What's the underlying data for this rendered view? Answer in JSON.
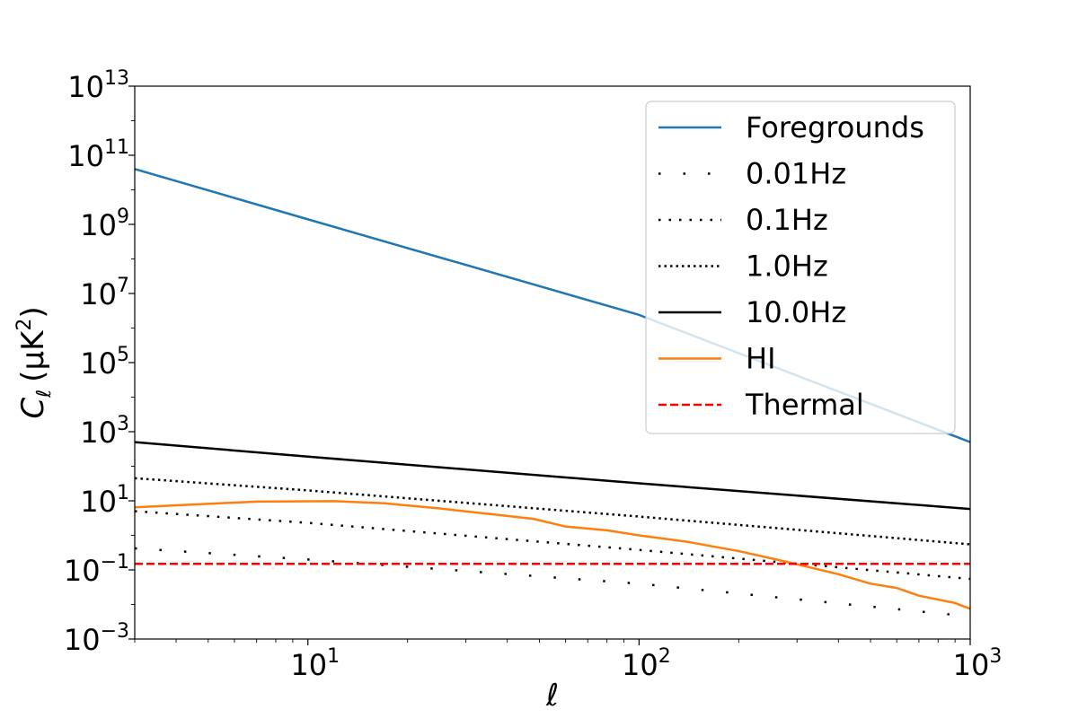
{
  "chart_data": {
    "type": "line",
    "title": "",
    "xlabel": "ℓ",
    "ylabel": {
      "main": "C",
      "sub": "ℓ",
      "units": "(μK",
      "units_exp": "2",
      "units_close": ")"
    },
    "xscale": "log",
    "yscale": "log",
    "xlim": [
      3,
      1000
    ],
    "ylim": [
      0.001,
      10000000000000.0
    ],
    "grid": false,
    "legend_position": "top-right",
    "x_ticks": [
      {
        "value": 10,
        "base": "10",
        "exp": "1"
      },
      {
        "value": 100,
        "base": "10",
        "exp": "2"
      },
      {
        "value": 1000,
        "base": "10",
        "exp": "3"
      }
    ],
    "y_ticks": [
      {
        "value": 0.001,
        "base": "10",
        "exp": "−3"
      },
      {
        "value": 0.1,
        "base": "10",
        "exp": "−1"
      },
      {
        "value": 10,
        "base": "10",
        "exp": "1"
      },
      {
        "value": 1000,
        "base": "10",
        "exp": "3"
      },
      {
        "value": 100000,
        "base": "10",
        "exp": "5"
      },
      {
        "value": 10000000,
        "base": "10",
        "exp": "7"
      },
      {
        "value": 1000000000,
        "base": "10",
        "exp": "9"
      },
      {
        "value": 100000000000,
        "base": "10",
        "exp": "11"
      },
      {
        "value": 10000000000000,
        "base": "10",
        "exp": "13"
      }
    ],
    "series": [
      {
        "name": "Foregrounds",
        "color": "#1f77b4",
        "style": "solid",
        "x": [
          3,
          10,
          100,
          1000
        ],
        "y": [
          40000000000,
          1400000000,
          2400000,
          500
        ]
      },
      {
        "name": "0.01Hz",
        "color": "#000000",
        "style": "loose-dot",
        "x": [
          3,
          10,
          100,
          1000
        ],
        "y": [
          0.42,
          0.2,
          0.04,
          0.0045
        ]
      },
      {
        "name": "0.1Hz",
        "color": "#000000",
        "style": "dot",
        "x": [
          3,
          10,
          100,
          1000
        ],
        "y": [
          5.0,
          2.3,
          0.38,
          0.055
        ]
      },
      {
        "name": "1.0Hz",
        "color": "#000000",
        "style": "dense-dot",
        "x": [
          3,
          10,
          100,
          1000
        ],
        "y": [
          45,
          20,
          3.5,
          0.55
        ]
      },
      {
        "name": "10.0Hz",
        "color": "#000000",
        "style": "solid",
        "x": [
          3,
          10,
          100,
          1000
        ],
        "y": [
          500,
          190,
          32,
          5.8
        ]
      },
      {
        "name": "HI",
        "color": "#ff7f0e",
        "style": "solid",
        "x": [
          3,
          7,
          12,
          17,
          25,
          35,
          48,
          60,
          80,
          100,
          140,
          200,
          280,
          400,
          500,
          600,
          700,
          900,
          1000
        ],
        "y": [
          6.5,
          9.5,
          9.8,
          8.5,
          6.0,
          4.2,
          3.0,
          1.8,
          1.4,
          1.0,
          0.65,
          0.35,
          0.17,
          0.075,
          0.04,
          0.03,
          0.018,
          0.011,
          0.0075
        ]
      },
      {
        "name": "Thermal",
        "color": "#ff0000",
        "style": "dashed",
        "x": [
          3,
          1000
        ],
        "y": [
          0.15,
          0.15
        ]
      }
    ]
  }
}
